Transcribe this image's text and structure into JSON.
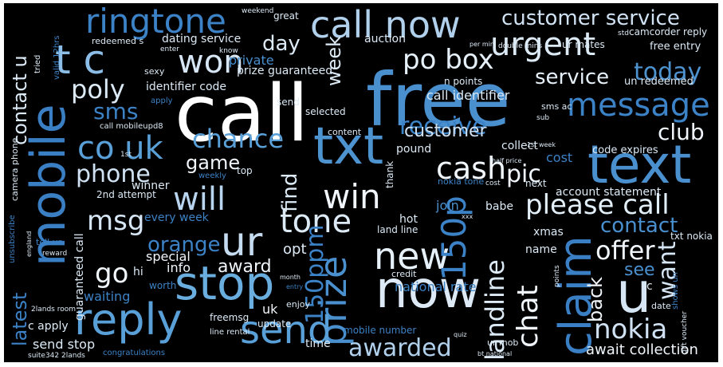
{
  "words": [
    {
      "text": "call"
    },
    {
      "text": "free"
    },
    {
      "text": "mobile"
    },
    {
      "text": "now"
    },
    {
      "text": "txt"
    },
    {
      "text": "text"
    },
    {
      "text": "stop"
    },
    {
      "text": "reply"
    },
    {
      "text": "ur"
    },
    {
      "text": "t c"
    },
    {
      "text": "call now"
    },
    {
      "text": "ringtone"
    },
    {
      "text": "won"
    },
    {
      "text": "urgent"
    },
    {
      "text": "customer service"
    },
    {
      "text": "u"
    },
    {
      "text": "claim"
    },
    {
      "text": "please call"
    },
    {
      "text": "message"
    },
    {
      "text": "new"
    },
    {
      "text": "win"
    },
    {
      "text": "prize"
    },
    {
      "text": "150p"
    },
    {
      "text": "send"
    },
    {
      "text": "co uk"
    },
    {
      "text": "chance"
    },
    {
      "text": "tone"
    },
    {
      "text": "will"
    },
    {
      "text": "cash"
    },
    {
      "text": "po box"
    },
    {
      "text": "landline"
    },
    {
      "text": "chat"
    },
    {
      "text": "nokia"
    },
    {
      "text": "msg"
    },
    {
      "text": "awarded"
    },
    {
      "text": "phone"
    },
    {
      "text": "150ppm"
    },
    {
      "text": "poly"
    },
    {
      "text": "sms"
    },
    {
      "text": "today"
    },
    {
      "text": "service"
    },
    {
      "text": "receive"
    },
    {
      "text": "customer"
    },
    {
      "text": "pic"
    },
    {
      "text": "offer"
    },
    {
      "text": "contact"
    },
    {
      "text": "want"
    },
    {
      "text": "club"
    },
    {
      "text": "day"
    },
    {
      "text": "week"
    },
    {
      "text": "find"
    },
    {
      "text": "orange"
    },
    {
      "text": "game"
    },
    {
      "text": "contact u"
    },
    {
      "text": "latest"
    },
    {
      "text": "award"
    },
    {
      "text": "go"
    },
    {
      "text": "back"
    },
    {
      "text": "see"
    },
    {
      "text": "await collection"
    },
    {
      "text": "send stop"
    },
    {
      "text": "private"
    },
    {
      "text": "every week"
    },
    {
      "text": "account statement"
    },
    {
      "text": "national rate"
    },
    {
      "text": "identifier code"
    },
    {
      "text": "prize guaranteed"
    },
    {
      "text": "dating service"
    },
    {
      "text": "auction"
    },
    {
      "text": "winner"
    },
    {
      "text": "special"
    },
    {
      "text": "waiting"
    },
    {
      "text": "c apply"
    },
    {
      "text": "info"
    },
    {
      "text": "hi"
    },
    {
      "text": "worth"
    },
    {
      "text": "time"
    },
    {
      "text": "uk"
    },
    {
      "text": "name"
    },
    {
      "text": "opt"
    },
    {
      "text": "xmas"
    },
    {
      "text": "babe"
    },
    {
      "text": "join"
    },
    {
      "text": "hot"
    },
    {
      "text": "cost"
    },
    {
      "text": "next"
    },
    {
      "text": "collect"
    },
    {
      "text": "pound"
    },
    {
      "text": "top"
    },
    {
      "text": "land line"
    },
    {
      "text": "call identifier"
    },
    {
      "text": "n points"
    },
    {
      "text": "free entry"
    },
    {
      "text": "un redeemed"
    },
    {
      "text": "code expires"
    },
    {
      "text": "camcorder reply"
    },
    {
      "text": "double mins"
    },
    {
      "text": "ur mates"
    },
    {
      "text": "redeemed s"
    },
    {
      "text": "great"
    },
    {
      "text": "2nd attempt"
    },
    {
      "text": "guaranteed call"
    },
    {
      "text": "freemsg"
    },
    {
      "text": "update"
    },
    {
      "text": "selected"
    },
    {
      "text": "content"
    },
    {
      "text": "sexy"
    },
    {
      "text": "enter"
    },
    {
      "text": "know"
    },
    {
      "text": "tell ur"
    },
    {
      "text": "mobile number"
    },
    {
      "text": "ur mob"
    },
    {
      "text": "credit"
    },
    {
      "text": "gift voucher"
    },
    {
      "text": "txt nokia"
    },
    {
      "text": "date"
    },
    {
      "text": "c"
    },
    {
      "text": "enjoy"
    },
    {
      "text": "line rental"
    },
    {
      "text": "congratulations"
    },
    {
      "text": "suite342 2lands"
    },
    {
      "text": "call mobileupd8"
    },
    {
      "text": "weekly"
    },
    {
      "text": "thank"
    },
    {
      "text": "sms ac"
    },
    {
      "text": "send"
    },
    {
      "text": "nokia tone"
    },
    {
      "text": "cost"
    },
    {
      "text": "unsubscribe"
    },
    {
      "text": "camera phone"
    },
    {
      "text": "weekend"
    },
    {
      "text": "half price"
    },
    {
      "text": "1st week"
    },
    {
      "text": "points"
    },
    {
      "text": "2lands room"
    },
    {
      "text": "std"
    },
    {
      "text": "per min"
    },
    {
      "text": "valid 12hrs"
    },
    {
      "text": "tried"
    },
    {
      "text": "1st"
    },
    {
      "text": "bt national"
    },
    {
      "text": "shows un"
    },
    {
      "text": "sub"
    },
    {
      "text": "reward"
    },
    {
      "text": "apply"
    },
    {
      "text": "england"
    },
    {
      "text": "xxx"
    },
    {
      "text": "quiz"
    },
    {
      "text": "month"
    },
    {
      "text": "entry"
    }
  ]
}
